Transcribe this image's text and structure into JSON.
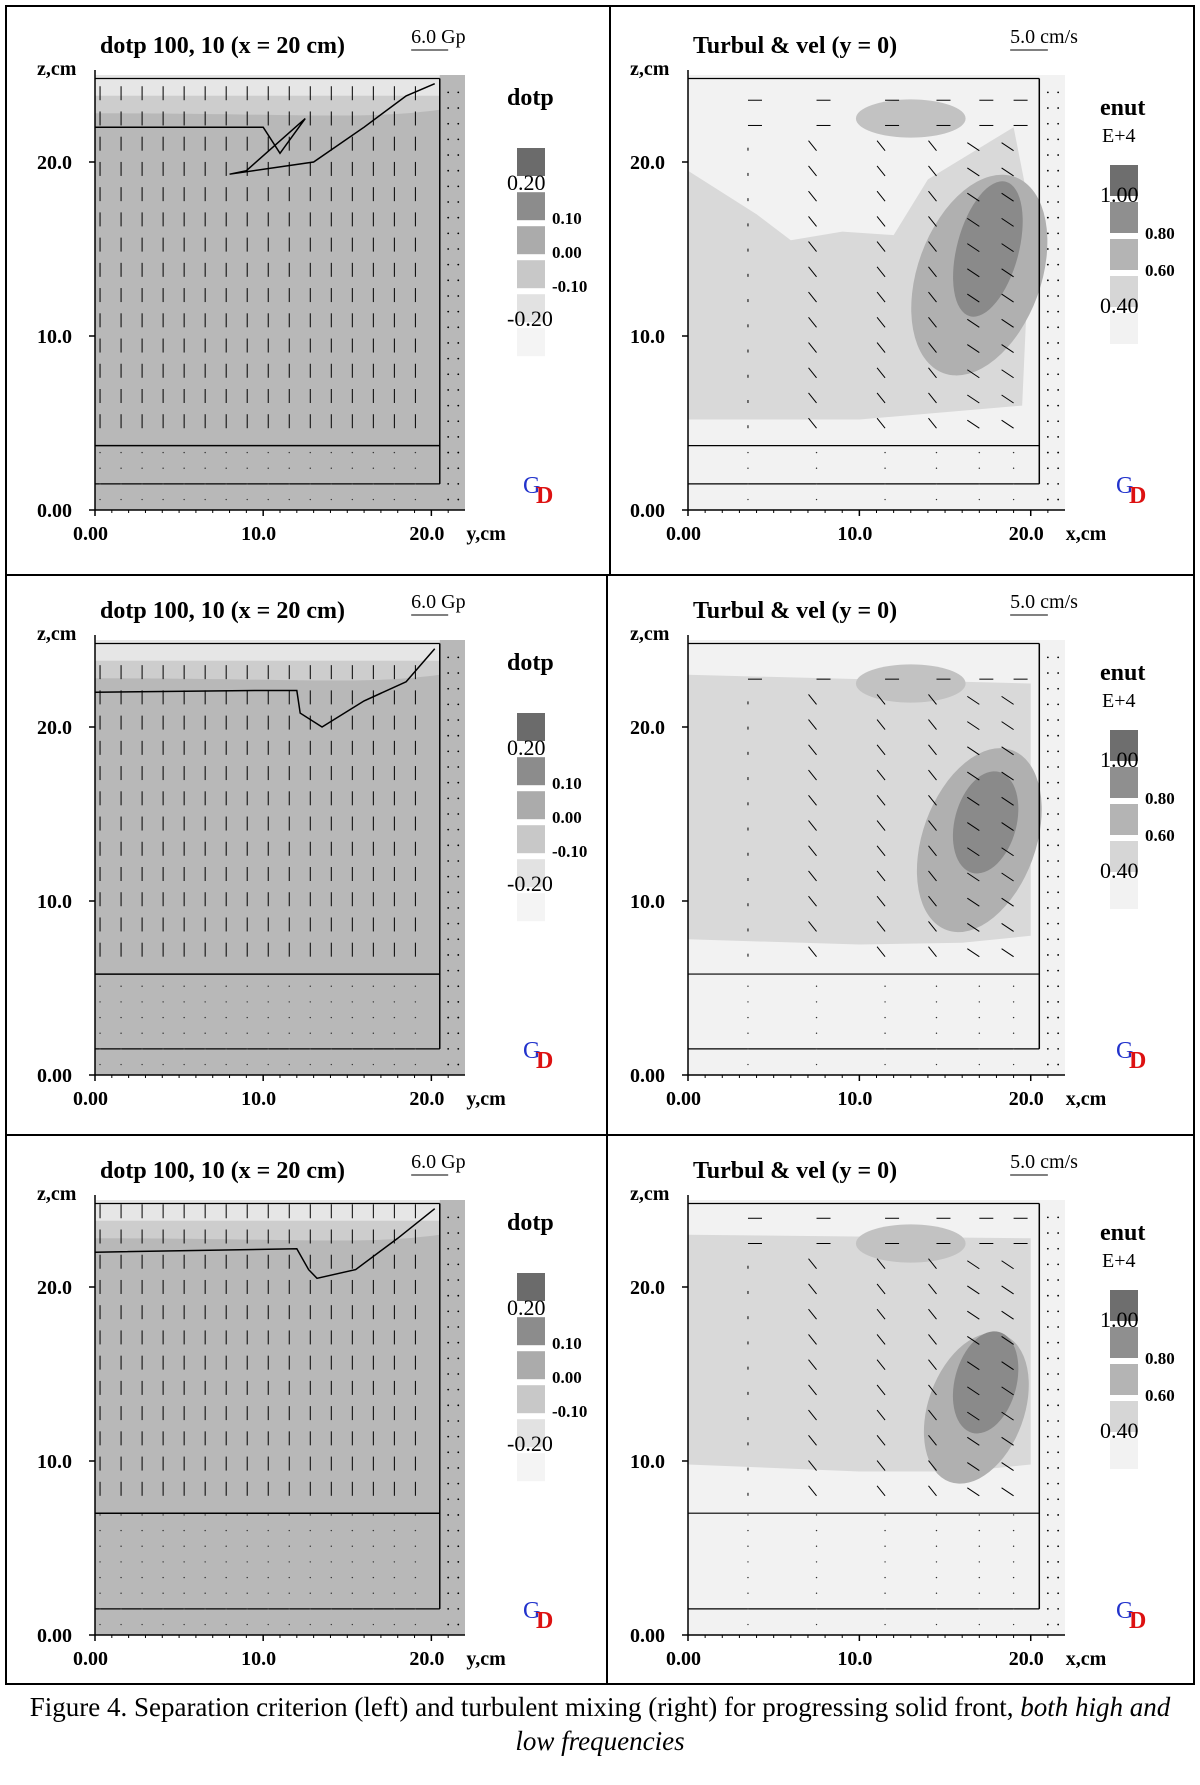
{
  "figure": {
    "caption_main": "Figure 4.  Separation criterion (left) and turbulent mixing (right) for progressing solid front, ",
    "caption_italic": "both high and low frequencies"
  },
  "left_panel": {
    "title": "dotp 100, 10  (x = 20 cm)",
    "scale_label": "6.0 Gp",
    "y_axis_label": "z,cm",
    "x_axis_label": "y,cm",
    "x_ticks": [
      "0.00",
      "10.0",
      "20.0"
    ],
    "y_ticks": [
      "0.00",
      "10.0",
      "20.0"
    ],
    "legend": {
      "title": "dotp",
      "labels": [
        "0.20",
        "0.10",
        "0.00",
        "-0.10",
        "-0.20"
      ],
      "colors": [
        "#6b6b6b",
        "#8c8c8c",
        "#ababab",
        "#c8c8c8",
        "#e2e2e2",
        "#f4f4f4"
      ]
    },
    "logo_text_g": "G",
    "logo_text_d": "D"
  },
  "right_panel": {
    "title": "Turbul & vel  (y = 0)",
    "scale_label": "5.0 cm/s",
    "y_axis_label": "z,cm",
    "x_axis_label": "x,cm",
    "x_ticks": [
      "0.00",
      "10.0",
      "20.0"
    ],
    "y_ticks": [
      "0.00",
      "10.0",
      "20.0"
    ],
    "legend": {
      "title": "enut",
      "exponent": "E+4",
      "labels": [
        "1.00",
        "0.80",
        "0.60",
        "0.40"
      ],
      "colors": [
        "#6e6e6e",
        "#8f8f8f",
        "#b4b4b4",
        "#d6d6d6",
        "#f2f2f2"
      ]
    },
    "logo_text_g": "G",
    "logo_text_d": "D"
  },
  "chart_data": [
    {
      "type": "heatmap",
      "panel": "row1-left",
      "title": "dotp 100, 10  (x = 20 cm)",
      "xlabel": "y,cm",
      "ylabel": "z,cm",
      "xlim": [
        0,
        22
      ],
      "ylim": [
        0,
        25
      ],
      "solid_front_z": 3.7,
      "lower_line_z": 1.5
    },
    {
      "type": "heatmap",
      "panel": "row1-right",
      "title": "Turbul & vel  (y = 0)",
      "xlabel": "x,cm",
      "ylabel": "z,cm",
      "xlim": [
        0,
        22
      ],
      "ylim": [
        0,
        25
      ],
      "solid_front_z": 3.7,
      "lower_line_z": 1.5
    },
    {
      "type": "heatmap",
      "panel": "row2-left",
      "title": "dotp 100, 10  (x = 20 cm)",
      "xlabel": "y,cm",
      "ylabel": "z,cm",
      "xlim": [
        0,
        22
      ],
      "ylim": [
        0,
        25
      ],
      "solid_front_z": 5.8,
      "lower_line_z": 1.5
    },
    {
      "type": "heatmap",
      "panel": "row2-right",
      "title": "Turbul & vel  (y = 0)",
      "xlabel": "x,cm",
      "ylabel": "z,cm",
      "xlim": [
        0,
        22
      ],
      "ylim": [
        0,
        25
      ],
      "solid_front_z": 5.8,
      "lower_line_z": 1.5
    },
    {
      "type": "heatmap",
      "panel": "row3-left",
      "title": "dotp 100, 10  (x = 20 cm)",
      "xlabel": "y,cm",
      "ylabel": "z,cm",
      "xlim": [
        0,
        22
      ],
      "ylim": [
        0,
        25
      ],
      "solid_front_z": 7.0,
      "lower_line_z": 1.5
    },
    {
      "type": "heatmap",
      "panel": "row3-right",
      "title": "Turbul & vel  (y = 0)",
      "xlabel": "x,cm",
      "ylabel": "z,cm",
      "xlim": [
        0,
        22
      ],
      "ylim": [
        0,
        25
      ],
      "solid_front_z": 7.0,
      "lower_line_z": 1.5
    }
  ]
}
